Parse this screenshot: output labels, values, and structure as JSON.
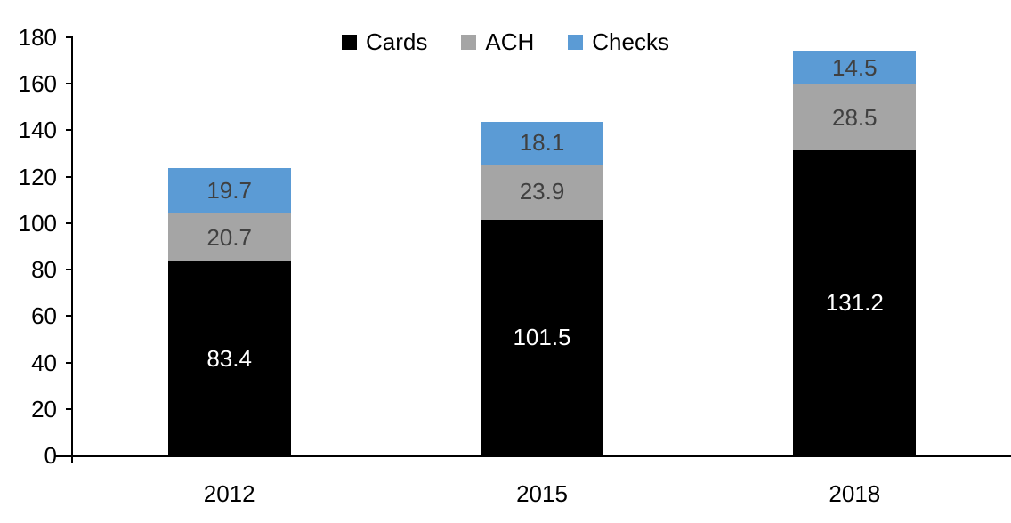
{
  "chart_data": {
    "type": "bar",
    "stacked": true,
    "title": "",
    "xlabel": "",
    "ylabel": "",
    "categories": [
      "2012",
      "2015",
      "2018"
    ],
    "series": [
      {
        "name": "Cards",
        "color": "#000000",
        "label_color": "#ffffff",
        "values": [
          83.4,
          101.5,
          131.2
        ]
      },
      {
        "name": "ACH",
        "color": "#a5a5a5",
        "label_color": "#404040",
        "values": [
          20.7,
          23.9,
          28.5
        ]
      },
      {
        "name": "Checks",
        "color": "#5b9bd5",
        "label_color": "#404040",
        "values": [
          19.7,
          18.1,
          14.5
        ]
      }
    ],
    "totals": [
      123.8,
      143.5,
      174.2
    ],
    "ylim": [
      0,
      180
    ],
    "y_ticks": [
      0,
      20,
      40,
      60,
      80,
      100,
      120,
      140,
      160,
      180
    ],
    "grid": false,
    "legend_position": "top-center",
    "axis_color": "#000000"
  }
}
